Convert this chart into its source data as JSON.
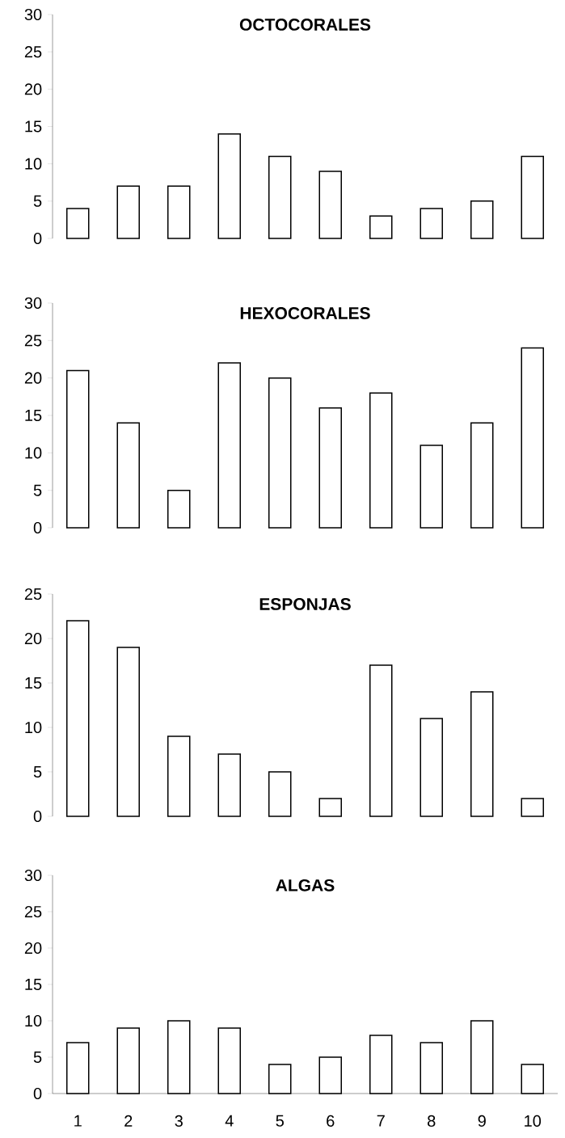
{
  "chart_data": [
    {
      "type": "bar",
      "title": "**OCTOCORALES**",
      "categories": [
        "1",
        "2",
        "3",
        "4",
        "5",
        "6",
        "7",
        "8",
        "9",
        "10"
      ],
      "values": [
        4,
        7,
        7,
        14,
        11,
        9,
        3,
        4,
        5,
        11
      ],
      "color": "#ffffff",
      "ylim": [
        0,
        30
      ],
      "yticks": [
        0,
        5,
        10,
        15,
        20,
        25,
        30
      ],
      "tick_labels": "y"
    },
    {
      "type": "bar",
      "title": "**HEXOCORALES**",
      "categories": [
        "1",
        "2",
        "3",
        "4",
        "5",
        "6",
        "7",
        "8",
        "9",
        "10"
      ],
      "values": [
        21,
        14,
        5,
        22,
        20,
        16,
        18,
        11,
        14,
        24
      ],
      "color": "#ffffff",
      "ylim": [
        0,
        30
      ],
      "yticks": [
        0,
        5,
        10,
        15,
        20,
        25,
        30
      ],
      "tick_labels": "y"
    },
    {
      "type": "bar",
      "title": "**ESPONJAS**",
      "categories": [
        "1",
        "2",
        "3",
        "4",
        "5",
        "6",
        "7",
        "8",
        "9",
        "10"
      ],
      "values": [
        22,
        19,
        9,
        7,
        5,
        2,
        17,
        11,
        14,
        2
      ],
      "color": "#ffffff",
      "ylim": [
        0,
        25
      ],
      "yticks": [
        0,
        5,
        10,
        15,
        20,
        25
      ],
      "tick_labels": "y"
    },
    {
      "type": "bar",
      "title": "**ALGAS**",
      "categories": [
        "1",
        "2",
        "3",
        "4",
        "5",
        "6",
        "7",
        "8",
        "9",
        "10"
      ],
      "values": [
        7,
        9,
        10,
        9,
        4,
        5,
        8,
        7,
        10,
        4
      ],
      "color": "#ffffff",
      "ylim": [
        0,
        30
      ],
      "yticks": [
        0,
        5,
        10,
        15,
        20,
        25,
        30
      ]
    }
  ]
}
